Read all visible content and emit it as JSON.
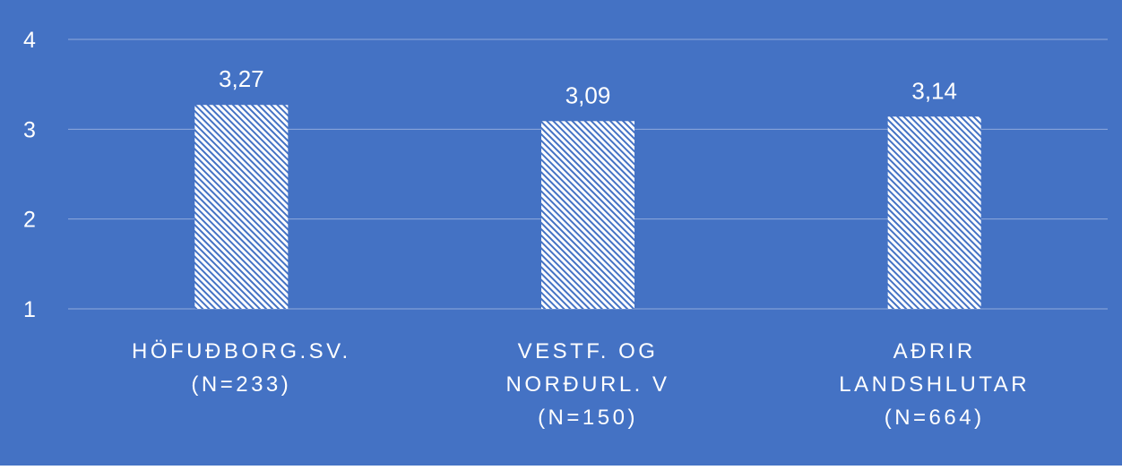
{
  "chart_data": {
    "type": "bar",
    "categories": [
      [
        "HÖFUÐBORG.SV.",
        "(N=233)"
      ],
      [
        "VESTF. OG",
        "NORÐURL. V",
        "(N=150)"
      ],
      [
        "AÐRIR",
        "LANDSHLUTAR",
        "(N=664)"
      ]
    ],
    "values": [
      3.27,
      3.09,
      3.14
    ],
    "value_labels": [
      "3,27",
      "3,09",
      "3,14"
    ],
    "ylim": [
      1,
      4
    ],
    "yticks": [
      1,
      2,
      3,
      4
    ],
    "title": "",
    "xlabel": "",
    "ylabel": "",
    "grid": true,
    "legend": "none",
    "colors": {
      "background": "#4472C4",
      "gridline": "#8FAADC",
      "bar_fill": "#FFFFFF",
      "bar_hatch": "#4472C4",
      "text": "#FFFFFF"
    }
  }
}
